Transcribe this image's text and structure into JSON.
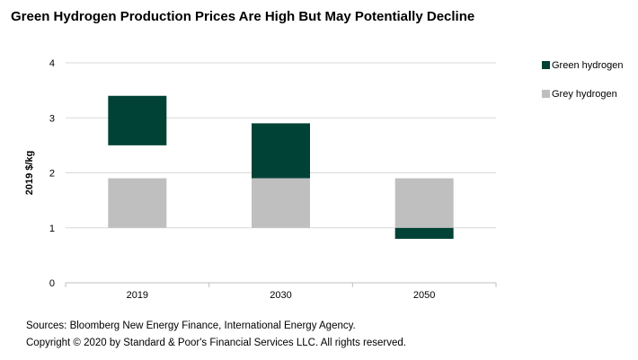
{
  "title": "Green Hydrogen Production Prices Are High But May Potentially Decline",
  "footer": {
    "sources": "Sources: Bloomberg New Energy Finance, International Energy Agency.",
    "copyright": "Copyright © 2020 by Standard & Poor's Financial Services LLC. All rights reserved."
  },
  "chart_data": {
    "type": "bar",
    "subtype": "floating-range",
    "title": "Green Hydrogen Production Prices Are High But May Potentially Decline",
    "xlabel": "",
    "ylabel": "2019 $/kg",
    "ylim": [
      0,
      4
    ],
    "yticks": [
      0,
      1,
      2,
      3,
      4
    ],
    "grid": true,
    "legend_position": "right",
    "categories": [
      "2019",
      "2030",
      "2050"
    ],
    "series": [
      {
        "name": "Green hydrogen",
        "color": "#004236",
        "ranges": [
          [
            2.5,
            3.4
          ],
          [
            1.9,
            2.9
          ],
          [
            0.8,
            1.0
          ]
        ]
      },
      {
        "name": "Grey  hydrogen",
        "color": "#bfbfbf",
        "ranges": [
          [
            1.0,
            1.9
          ],
          [
            1.0,
            1.9
          ],
          [
            1.0,
            1.9
          ]
        ]
      }
    ]
  }
}
